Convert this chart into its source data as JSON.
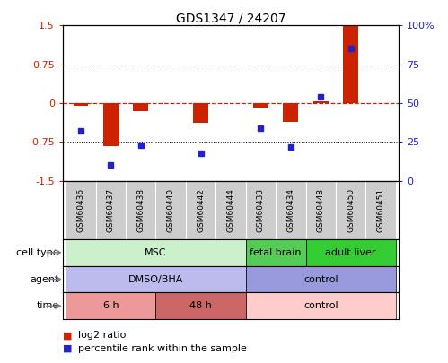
{
  "title": "GDS1347 / 24207",
  "samples": [
    "GSM60436",
    "GSM60437",
    "GSM60438",
    "GSM60440",
    "GSM60442",
    "GSM60444",
    "GSM60433",
    "GSM60434",
    "GSM60448",
    "GSM60450",
    "GSM60451"
  ],
  "log2_ratio": [
    -0.05,
    -0.83,
    -0.15,
    0.0,
    -0.38,
    0.0,
    -0.08,
    -0.37,
    0.03,
    1.5,
    0.0
  ],
  "percentile_rank": [
    32,
    10,
    23,
    null,
    18,
    null,
    34,
    22,
    54,
    85,
    null
  ],
  "ylim": [
    -1.5,
    1.5
  ],
  "yticks_left": [
    -1.5,
    -0.75,
    0,
    0.75,
    1.5
  ],
  "yticks_right": [
    0,
    25,
    50,
    75,
    100
  ],
  "hlines": [
    0.75,
    -0.75
  ],
  "bar_color": "#cc2200",
  "dot_color": "#2222cc",
  "cell_type_groups": [
    {
      "label": "MSC",
      "start": 0,
      "end": 6,
      "color": "#ccf0cc"
    },
    {
      "label": "fetal brain",
      "start": 6,
      "end": 8,
      "color": "#55cc55"
    },
    {
      "label": "adult liver",
      "start": 8,
      "end": 11,
      "color": "#33cc33"
    }
  ],
  "agent_groups": [
    {
      "label": "DMSO/BHA",
      "start": 0,
      "end": 6,
      "color": "#bbbbee"
    },
    {
      "label": "control",
      "start": 6,
      "end": 11,
      "color": "#9999dd"
    }
  ],
  "time_groups": [
    {
      "label": "6 h",
      "start": 0,
      "end": 3,
      "color": "#ee9999"
    },
    {
      "label": "48 h",
      "start": 3,
      "end": 6,
      "color": "#cc6666"
    },
    {
      "label": "control",
      "start": 6,
      "end": 11,
      "color": "#ffcccc"
    }
  ],
  "row_labels": [
    "cell type",
    "agent",
    "time"
  ],
  "legend_items": [
    {
      "label": "log2 ratio",
      "color": "#cc2200"
    },
    {
      "label": "percentile rank within the sample",
      "color": "#2222cc"
    }
  ],
  "grid_color": "#888888",
  "zero_line_color": "#cc2200",
  "sample_box_color": "#cccccc",
  "border_color": "#000000"
}
